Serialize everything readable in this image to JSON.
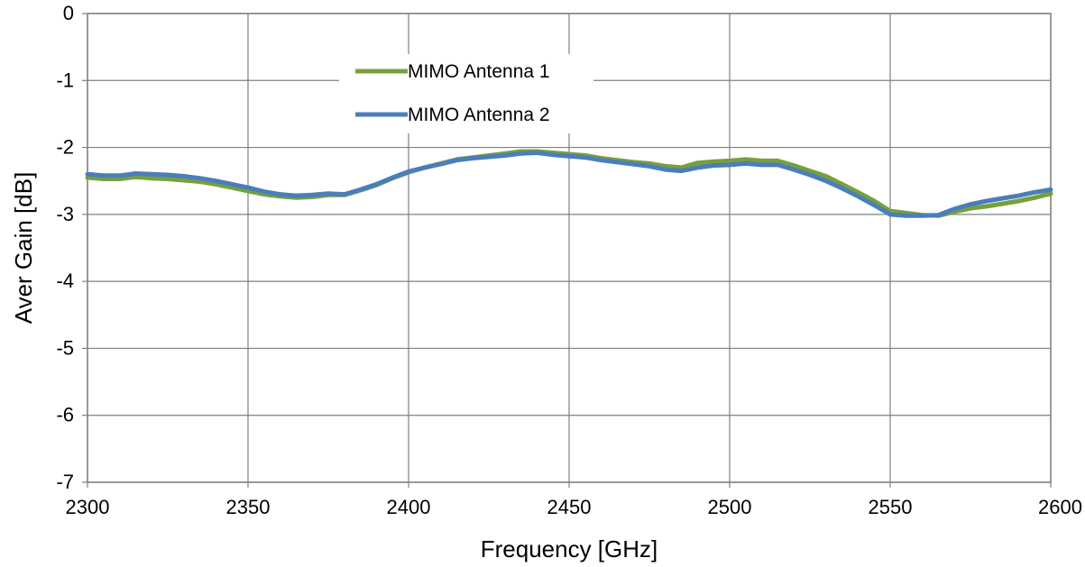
{
  "chart_data": {
    "type": "line",
    "xlabel": "Frequency [GHz]",
    "ylabel": "Aver Gain [dB]",
    "xlim": [
      2300,
      2600
    ],
    "ylim": [
      -7,
      0
    ],
    "xticks": [
      "2300",
      "2350",
      "2400",
      "2450",
      "2500",
      "2550",
      "2600"
    ],
    "yticks": [
      "0",
      "-1",
      "-2",
      "-3",
      "-4",
      "-5",
      "-6",
      "-7"
    ],
    "grid": true,
    "legend_position": "top-center",
    "series": [
      {
        "name": "MIMO Antenna 1",
        "color": "#77a03c",
        "x": [
          2300,
          2305,
          2310,
          2315,
          2320,
          2325,
          2330,
          2335,
          2340,
          2345,
          2350,
          2355,
          2360,
          2365,
          2370,
          2375,
          2380,
          2385,
          2390,
          2395,
          2400,
          2405,
          2410,
          2415,
          2420,
          2425,
          2430,
          2435,
          2440,
          2445,
          2450,
          2455,
          2460,
          2465,
          2470,
          2475,
          2480,
          2485,
          2490,
          2495,
          2500,
          2505,
          2510,
          2515,
          2520,
          2525,
          2530,
          2535,
          2540,
          2545,
          2550,
          2555,
          2560,
          2565,
          2570,
          2575,
          2580,
          2585,
          2590,
          2595,
          2600
        ],
        "y": [
          -2.45,
          -2.47,
          -2.47,
          -2.44,
          -2.46,
          -2.47,
          -2.49,
          -2.51,
          -2.55,
          -2.6,
          -2.65,
          -2.7,
          -2.73,
          -2.75,
          -2.74,
          -2.71,
          -2.71,
          -2.64,
          -2.56,
          -2.46,
          -2.37,
          -2.3,
          -2.24,
          -2.18,
          -2.15,
          -2.12,
          -2.09,
          -2.06,
          -2.06,
          -2.08,
          -2.1,
          -2.12,
          -2.16,
          -2.19,
          -2.22,
          -2.24,
          -2.28,
          -2.3,
          -2.23,
          -2.21,
          -2.2,
          -2.18,
          -2.2,
          -2.2,
          -2.27,
          -2.35,
          -2.43,
          -2.55,
          -2.67,
          -2.8,
          -2.95,
          -2.98,
          -3.01,
          -3.02,
          -2.96,
          -2.91,
          -2.88,
          -2.84,
          -2.8,
          -2.75,
          -2.69
        ]
      },
      {
        "name": "MIMO Antenna 2",
        "color": "#4a7ebb",
        "x": [
          2300,
          2305,
          2310,
          2315,
          2320,
          2325,
          2330,
          2335,
          2340,
          2345,
          2350,
          2355,
          2360,
          2365,
          2370,
          2375,
          2380,
          2385,
          2390,
          2395,
          2400,
          2405,
          2410,
          2415,
          2420,
          2425,
          2430,
          2435,
          2440,
          2445,
          2450,
          2455,
          2460,
          2465,
          2470,
          2475,
          2480,
          2485,
          2490,
          2495,
          2500,
          2505,
          2510,
          2515,
          2520,
          2525,
          2530,
          2535,
          2540,
          2545,
          2550,
          2555,
          2560,
          2565,
          2570,
          2575,
          2580,
          2585,
          2590,
          2595,
          2600
        ],
        "y": [
          -2.4,
          -2.42,
          -2.42,
          -2.39,
          -2.4,
          -2.41,
          -2.43,
          -2.46,
          -2.5,
          -2.55,
          -2.6,
          -2.66,
          -2.7,
          -2.72,
          -2.71,
          -2.69,
          -2.7,
          -2.63,
          -2.55,
          -2.45,
          -2.36,
          -2.3,
          -2.25,
          -2.19,
          -2.16,
          -2.14,
          -2.12,
          -2.09,
          -2.08,
          -2.11,
          -2.13,
          -2.15,
          -2.19,
          -2.22,
          -2.25,
          -2.28,
          -2.33,
          -2.35,
          -2.3,
          -2.27,
          -2.26,
          -2.24,
          -2.26,
          -2.26,
          -2.33,
          -2.41,
          -2.5,
          -2.61,
          -2.73,
          -2.86,
          -3.0,
          -3.02,
          -3.02,
          -3.01,
          -2.92,
          -2.85,
          -2.8,
          -2.76,
          -2.72,
          -2.67,
          -2.63
        ]
      }
    ]
  }
}
